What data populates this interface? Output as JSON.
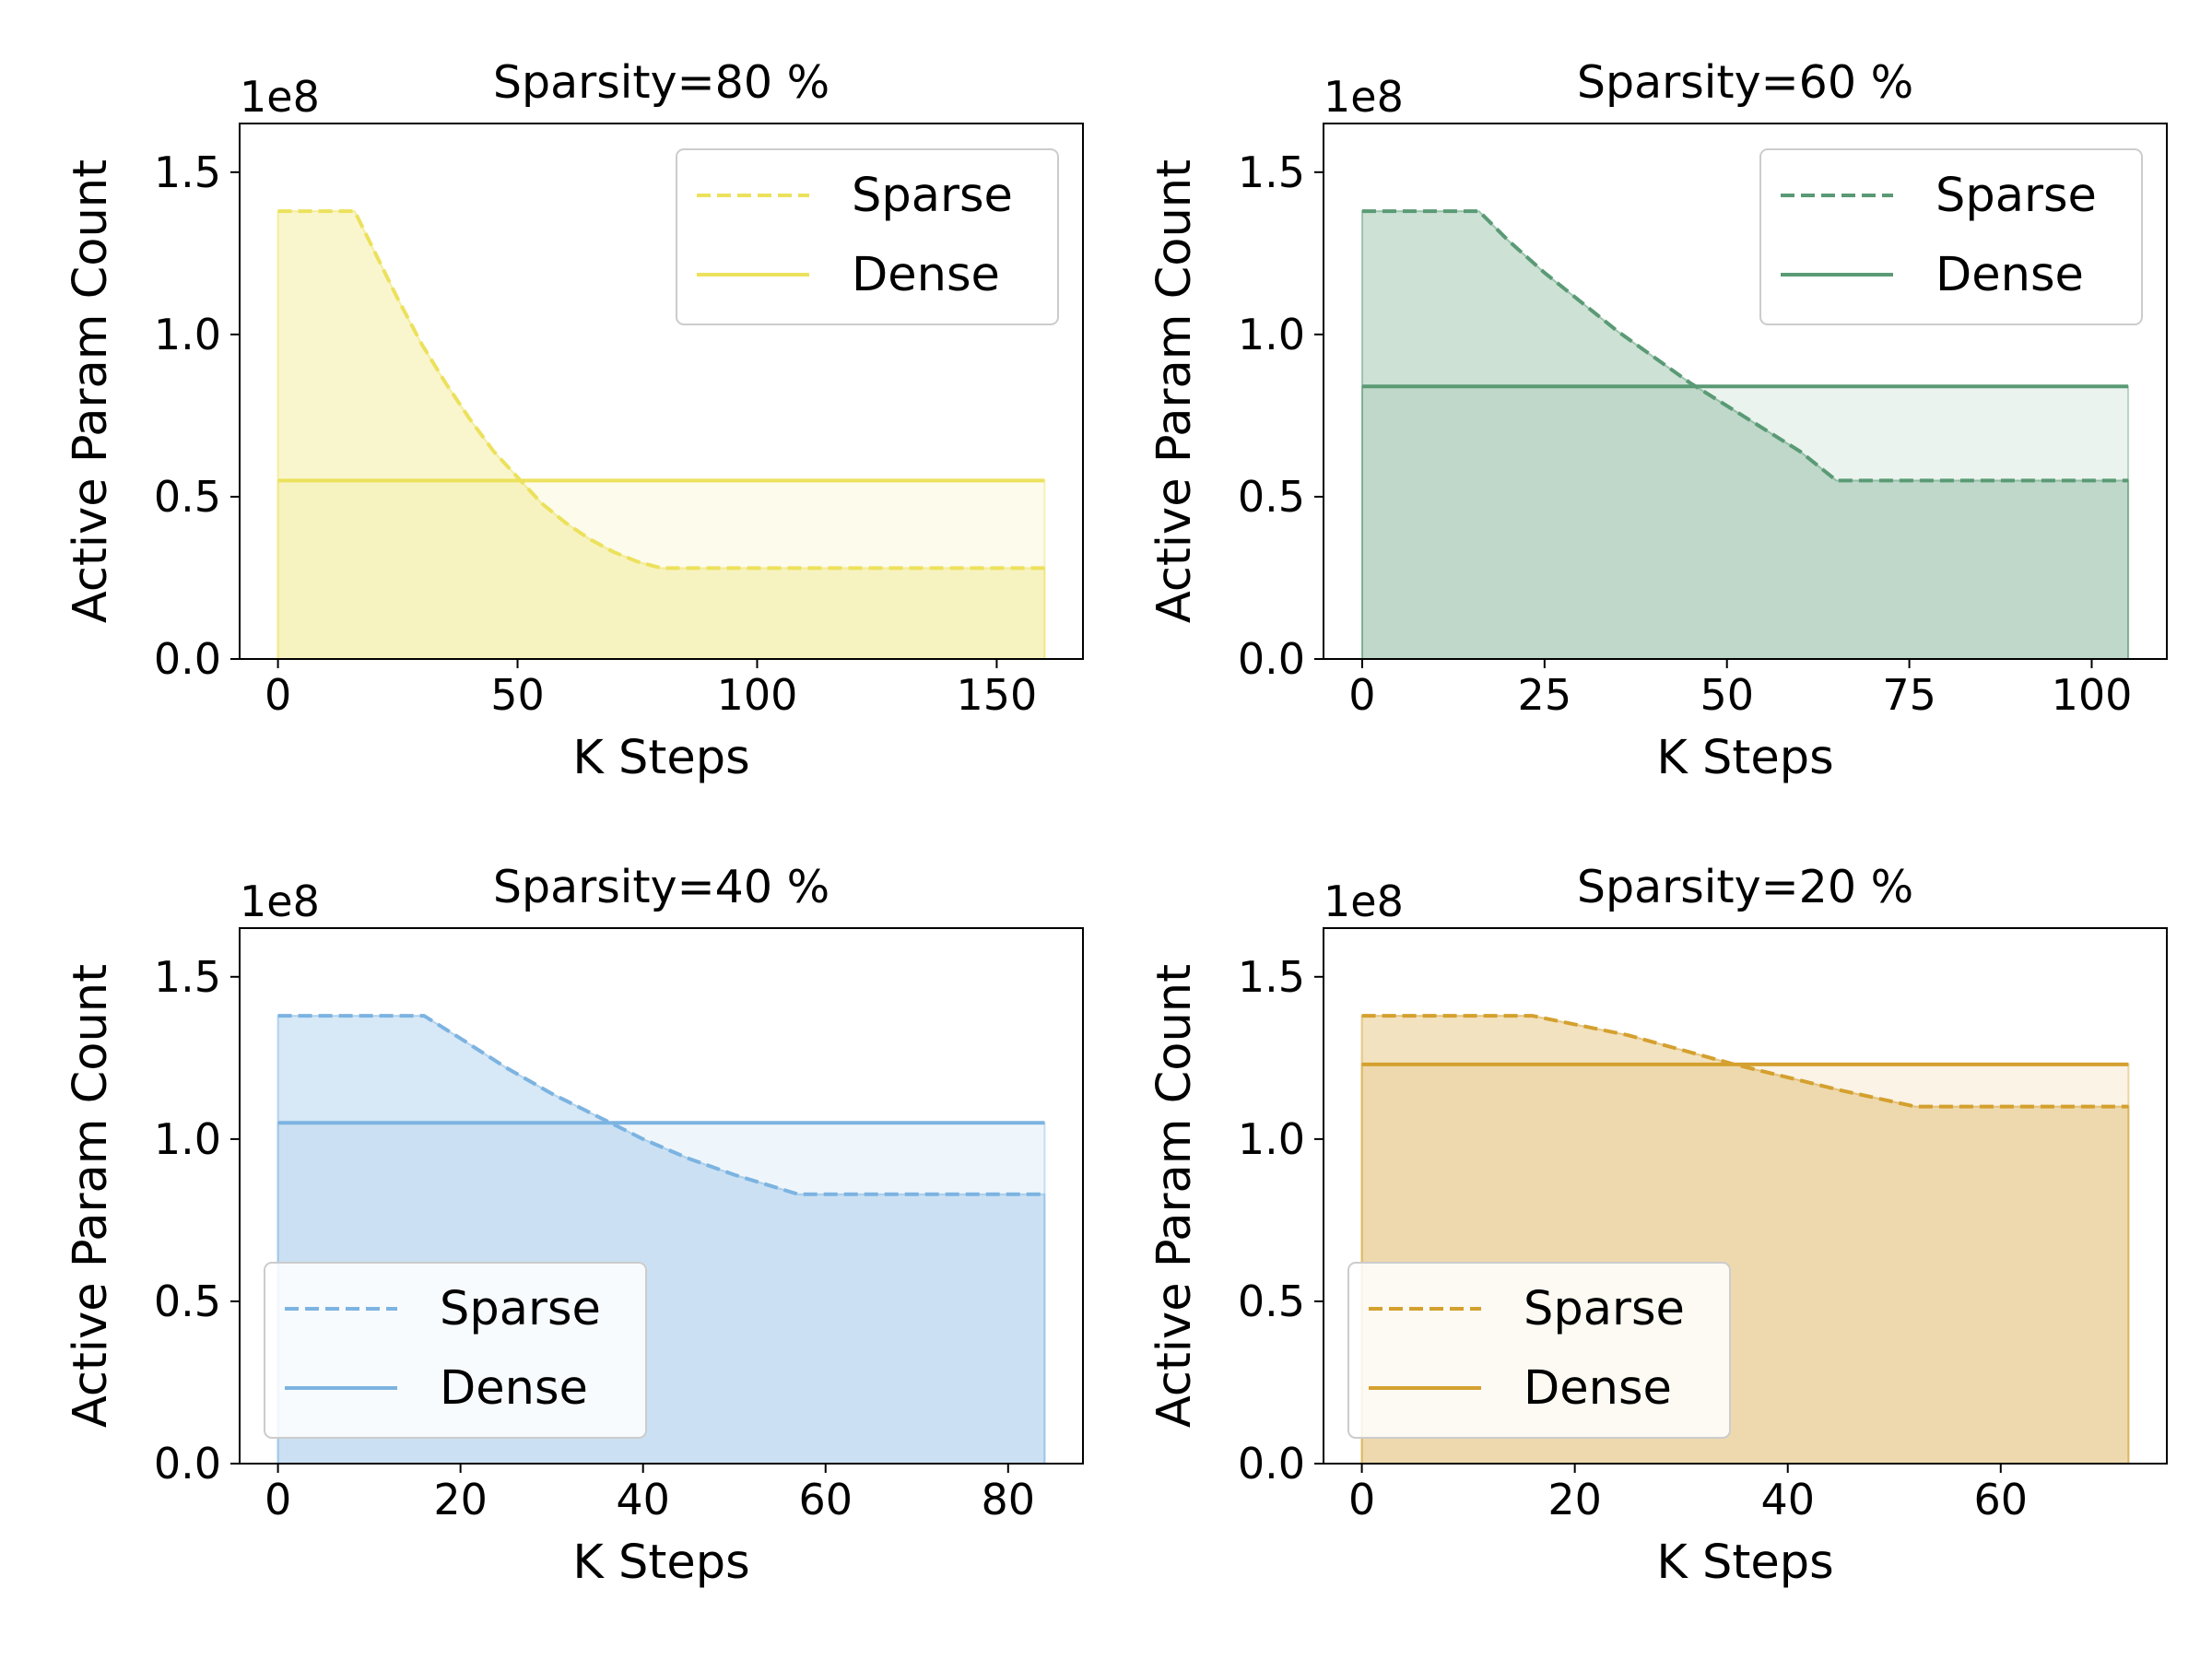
{
  "chart_data": [
    {
      "type": "area",
      "title": "Sparsity=80 %",
      "xlabel": "K Steps",
      "ylabel": "Active Param Count",
      "y_offset_text": "1e8",
      "xlim": [
        -8,
        168
      ],
      "ylim": [
        0,
        1.65
      ],
      "xticks": [
        0,
        50,
        100,
        150
      ],
      "xtick_labels": [
        "0",
        "50",
        "100",
        "150"
      ],
      "yticks": [
        0,
        0.5,
        1.0,
        1.5
      ],
      "ytick_labels": [
        "0.0",
        "0.5",
        "1.0",
        "1.5"
      ],
      "color": "#ece15c",
      "legend_position": "upper right",
      "series": [
        {
          "name": "Sparse",
          "line_style": "dashed",
          "x": [
            0,
            16,
            20,
            25,
            30,
            35,
            40,
            45,
            50,
            55,
            60,
            65,
            70,
            75,
            80,
            160
          ],
          "y": [
            1.38,
            1.38,
            1.26,
            1.11,
            0.97,
            0.85,
            0.74,
            0.64,
            0.56,
            0.48,
            0.42,
            0.37,
            0.33,
            0.3,
            0.28,
            0.28
          ]
        },
        {
          "name": "Dense",
          "line_style": "solid",
          "x": [
            0,
            160
          ],
          "y": [
            0.55,
            0.55
          ]
        }
      ]
    },
    {
      "type": "area",
      "title": "Sparsity=60 %",
      "xlabel": "K Steps",
      "ylabel": "Active Param Count",
      "y_offset_text": "1e8",
      "xlim": [
        -5.3,
        110.3
      ],
      "ylim": [
        0,
        1.65
      ],
      "xticks": [
        0,
        25,
        50,
        75,
        100
      ],
      "xtick_labels": [
        "0",
        "25",
        "50",
        "75",
        "100"
      ],
      "yticks": [
        0,
        0.5,
        1.0,
        1.5
      ],
      "ytick_labels": [
        "0.0",
        "0.5",
        "1.0",
        "1.5"
      ],
      "color": "#5a9a75",
      "legend_position": "upper right",
      "series": [
        {
          "name": "Sparse",
          "line_style": "dashed",
          "x": [
            0,
            16,
            20,
            25,
            30,
            35,
            40,
            45,
            50,
            55,
            60,
            65,
            105
          ],
          "y": [
            1.38,
            1.38,
            1.29,
            1.19,
            1.1,
            1.01,
            0.93,
            0.85,
            0.78,
            0.71,
            0.64,
            0.55,
            0.55
          ]
        },
        {
          "name": "Dense",
          "line_style": "solid",
          "x": [
            0,
            105
          ],
          "y": [
            0.84,
            0.84
          ]
        }
      ]
    },
    {
      "type": "area",
      "title": "Sparsity=40 %",
      "xlabel": "K Steps",
      "ylabel": "Active Param Count",
      "y_offset_text": "1e8",
      "xlim": [
        -4.2,
        88.2
      ],
      "ylim": [
        0,
        1.65
      ],
      "xticks": [
        0,
        20,
        40,
        60,
        80
      ],
      "xtick_labels": [
        "0",
        "20",
        "40",
        "60",
        "80"
      ],
      "yticks": [
        0,
        0.5,
        1.0,
        1.5
      ],
      "ytick_labels": [
        "0.0",
        "0.5",
        "1.0",
        "1.5"
      ],
      "color": "#7cb3e1",
      "legend_position": "lower left",
      "series": [
        {
          "name": "Sparse",
          "line_style": "dashed",
          "x": [
            0,
            16,
            20,
            25,
            30,
            35,
            40,
            45,
            50,
            57,
            84
          ],
          "y": [
            1.38,
            1.38,
            1.31,
            1.22,
            1.14,
            1.07,
            1.0,
            0.94,
            0.89,
            0.83,
            0.83
          ]
        },
        {
          "name": "Dense",
          "line_style": "solid",
          "x": [
            0,
            84
          ],
          "y": [
            1.05,
            1.05
          ]
        }
      ]
    },
    {
      "type": "area",
      "title": "Sparsity=20 %",
      "xlabel": "K Steps",
      "ylabel": "Active Param Count",
      "y_offset_text": "1e8",
      "xlim": [
        -3.6,
        75.6
      ],
      "ylim": [
        0,
        1.65
      ],
      "xticks": [
        0,
        20,
        40,
        60
      ],
      "xtick_labels": [
        "0",
        "20",
        "40",
        "60"
      ],
      "yticks": [
        0,
        0.5,
        1.0,
        1.5
      ],
      "ytick_labels": [
        "0.0",
        "0.5",
        "1.0",
        "1.5"
      ],
      "color": "#d4a02e",
      "legend_position": "lower left",
      "series": [
        {
          "name": "Sparse",
          "line_style": "dashed",
          "x": [
            0,
            16,
            25,
            35,
            45,
            52,
            72
          ],
          "y": [
            1.38,
            1.38,
            1.32,
            1.23,
            1.15,
            1.1,
            1.1
          ]
        },
        {
          "name": "Dense",
          "line_style": "solid",
          "x": [
            0,
            72
          ],
          "y": [
            1.23,
            1.23
          ]
        }
      ]
    }
  ]
}
